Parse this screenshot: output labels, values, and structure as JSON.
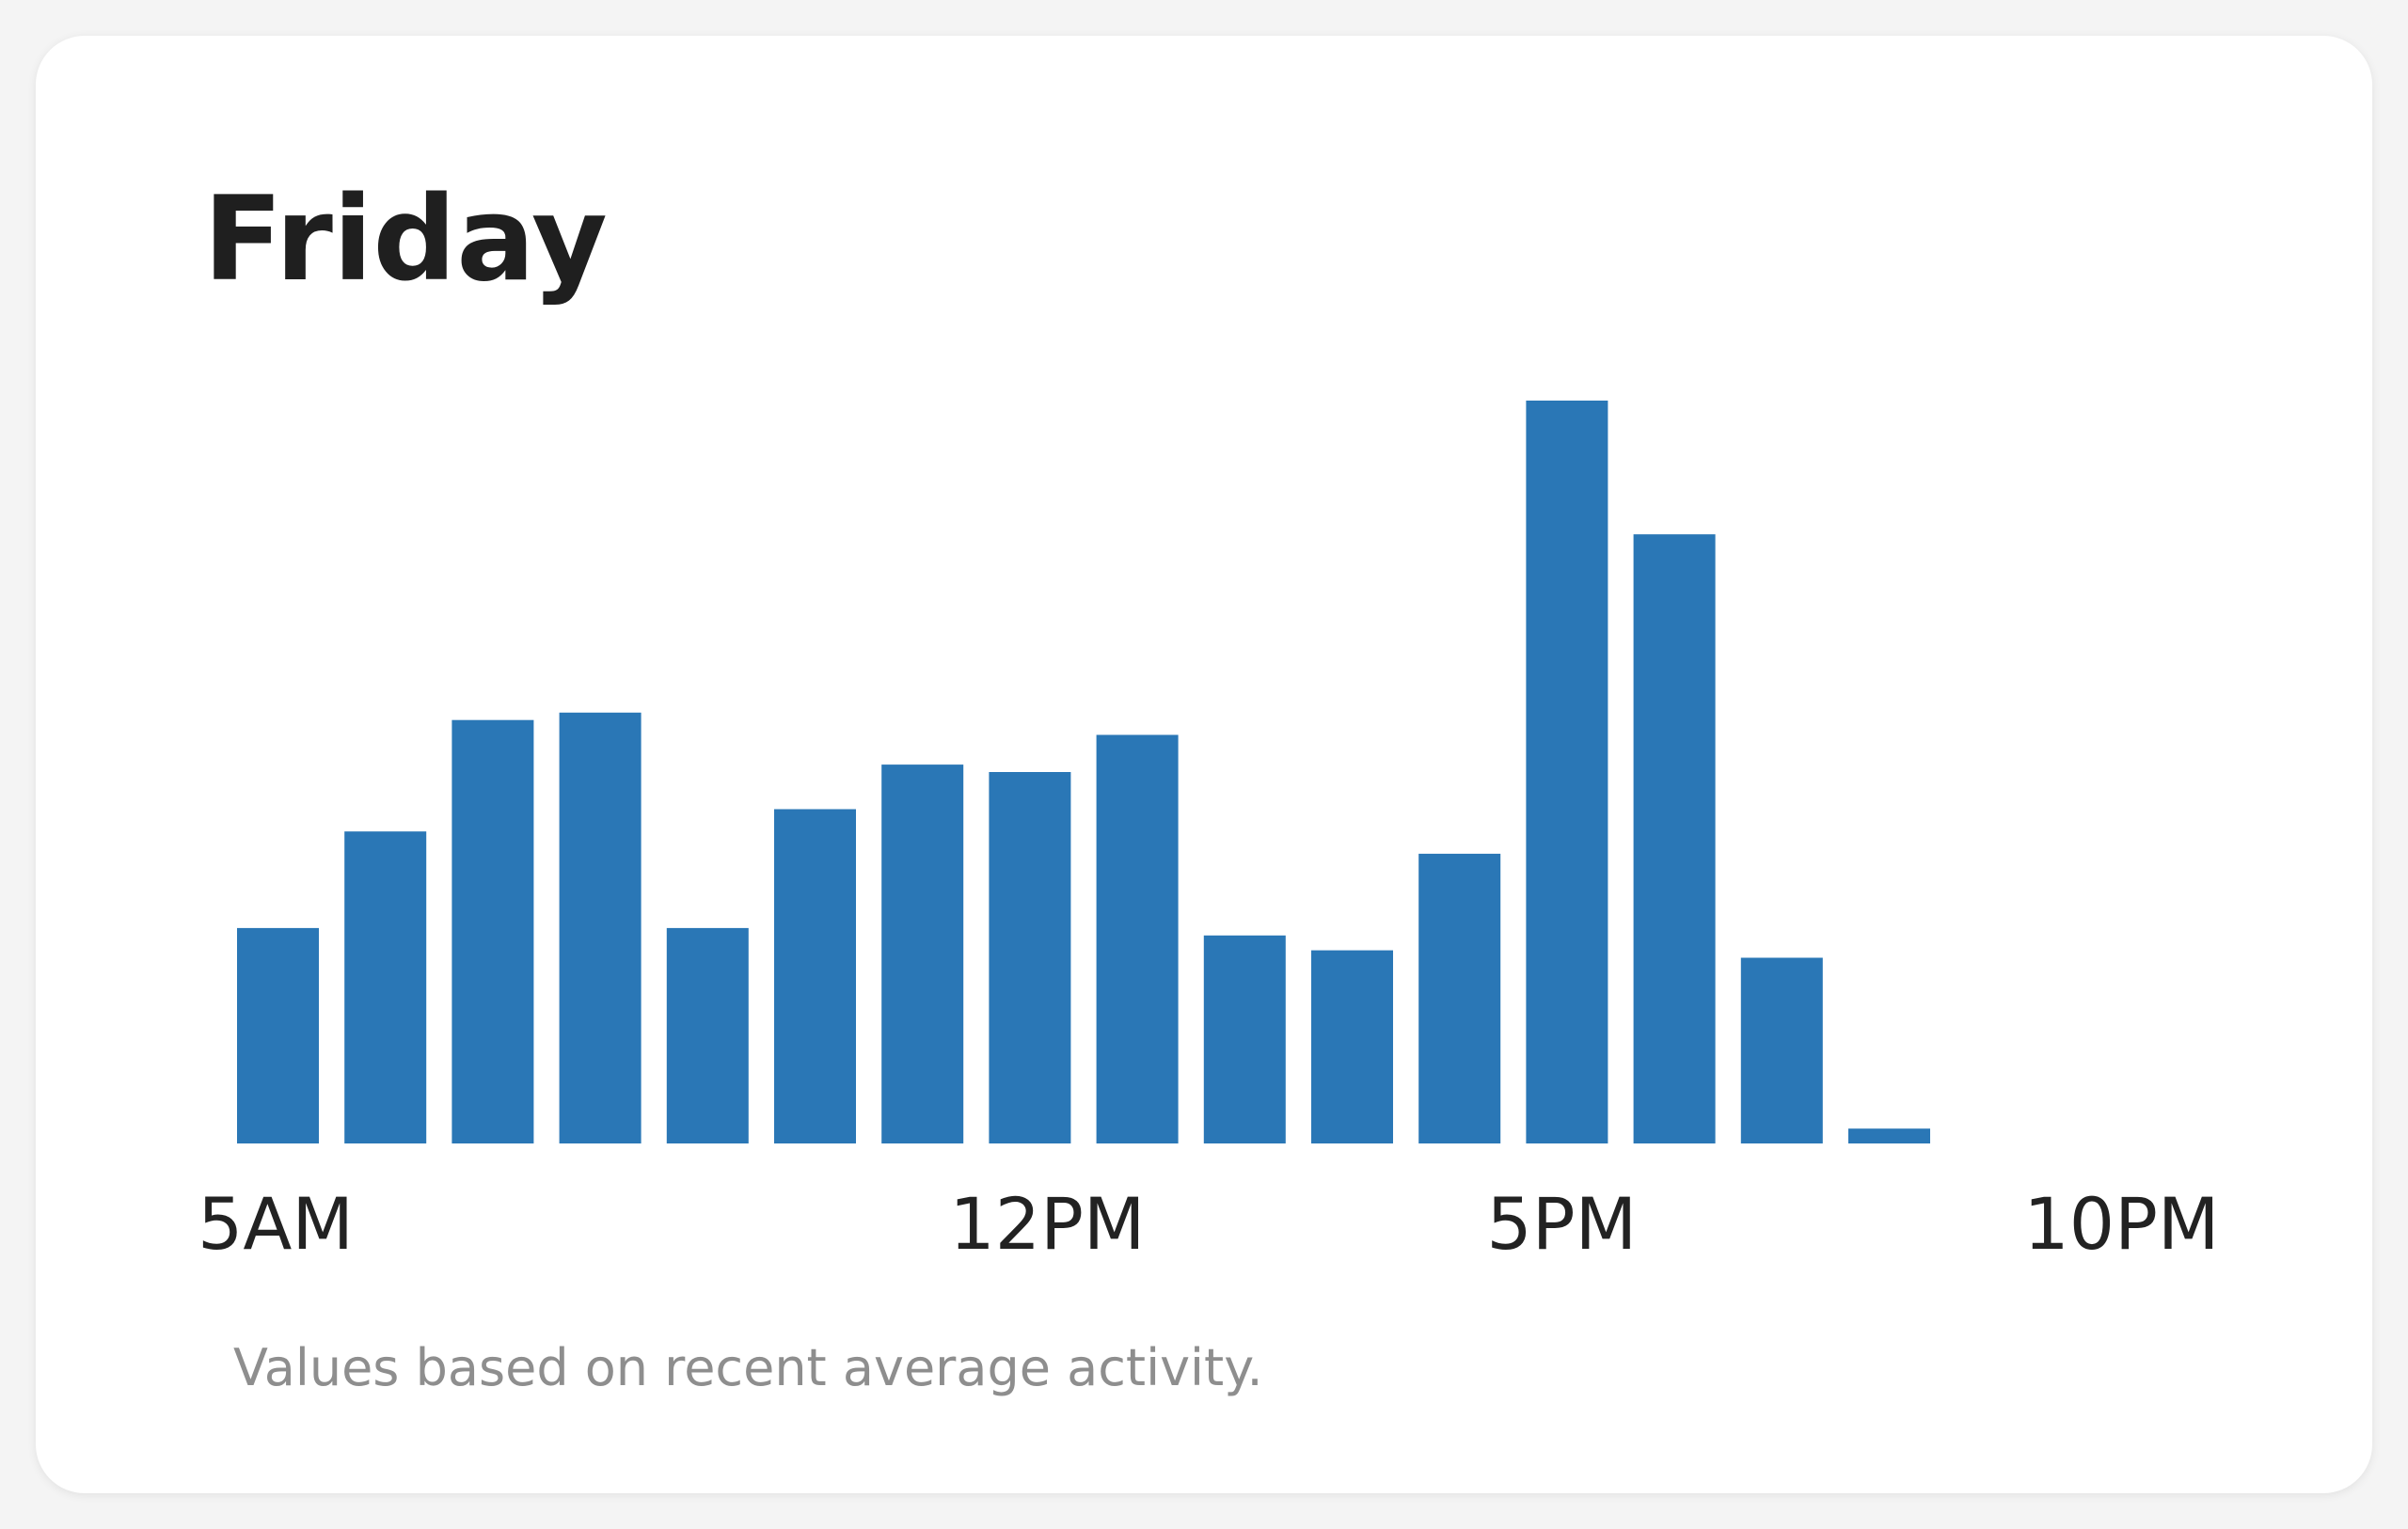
{
  "card": {
    "footnote": "Values based on recent average activity."
  },
  "colors": {
    "bar": "#2a77b6",
    "background": "#ffffff",
    "title": "#1f1f1f",
    "footnote": "#8e8e8e"
  },
  "chart_data": {
    "type": "bar",
    "title": "Friday",
    "xlabel": "",
    "ylabel": "",
    "categories": [
      "5AM",
      "6AM",
      "7AM",
      "8AM",
      "9AM",
      "10AM",
      "11AM",
      "12PM",
      "1PM",
      "2PM",
      "3PM",
      "4PM",
      "5PM",
      "6PM",
      "7PM",
      "8PM",
      "9PM",
      "10PM"
    ],
    "values": [
      29,
      42,
      57,
      58,
      29,
      45,
      51,
      50,
      55,
      28,
      26,
      39,
      100,
      82,
      25,
      2,
      0,
      0
    ],
    "tick_labels": [
      {
        "category": "5AM",
        "label": "5AM"
      },
      {
        "category": "12PM",
        "label": "12PM"
      },
      {
        "category": "5PM",
        "label": "5PM"
      },
      {
        "category": "10PM",
        "label": "10PM"
      }
    ],
    "ylim": [
      0,
      100
    ],
    "grid": false,
    "legend": "none"
  }
}
